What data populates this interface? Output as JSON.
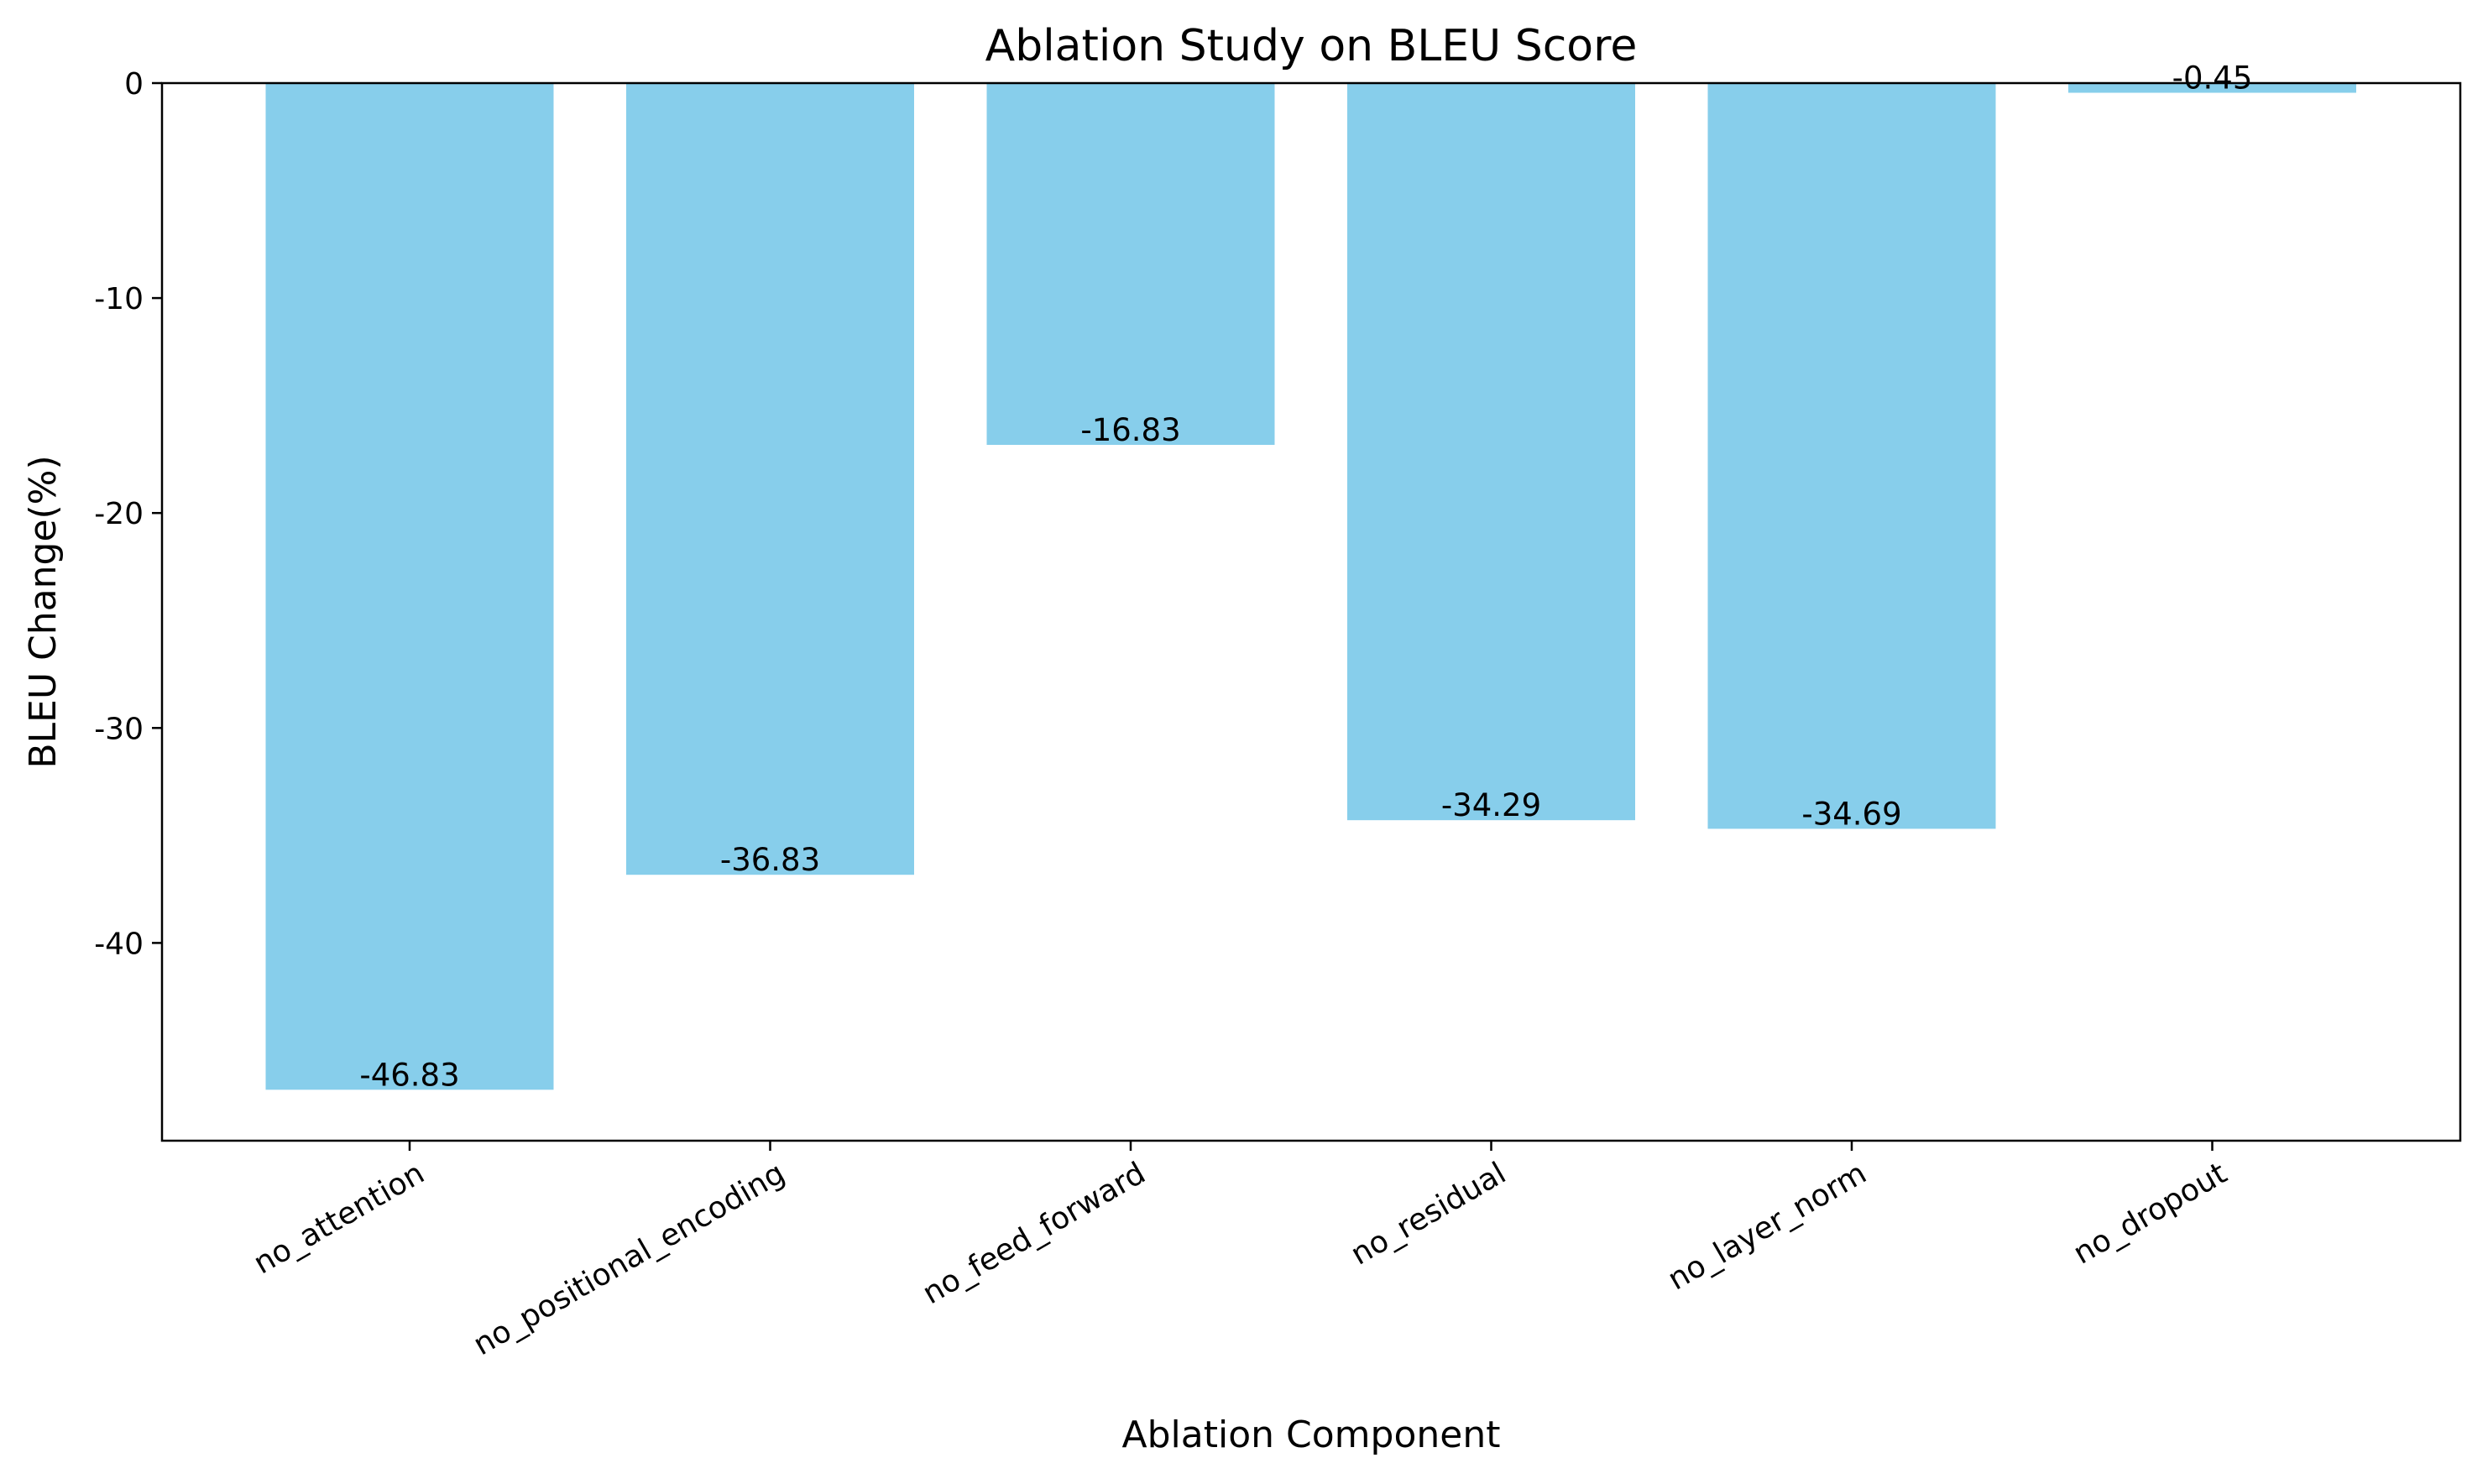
{
  "chart_data": {
    "type": "bar",
    "title": "Ablation Study on BLEU Score",
    "xlabel": "Ablation Component",
    "ylabel": "BLEU Change(%)",
    "categories": [
      "no_attention",
      "no_positional_encoding",
      "no_feed_forward",
      "no_residual",
      "no_layer_norm",
      "no_dropout"
    ],
    "values": [
      -46.83,
      -36.83,
      -16.83,
      -34.29,
      -34.69,
      -0.45
    ],
    "data_labels": [
      "-46.83",
      "-36.83",
      "-16.83",
      "-34.29",
      "-34.69",
      "-0.45"
    ],
    "ylim": [
      -49.2,
      0
    ],
    "yticks": [
      0,
      -10,
      -20,
      -30,
      -40
    ],
    "ytick_labels": [
      "0",
      "-10",
      "-20",
      "-30",
      "-40"
    ],
    "x_tick_rotation": 30,
    "grid": false,
    "legend": "none",
    "colors": {
      "bar": "#87CEEB",
      "axes": "#000000",
      "background": "#ffffff"
    }
  }
}
